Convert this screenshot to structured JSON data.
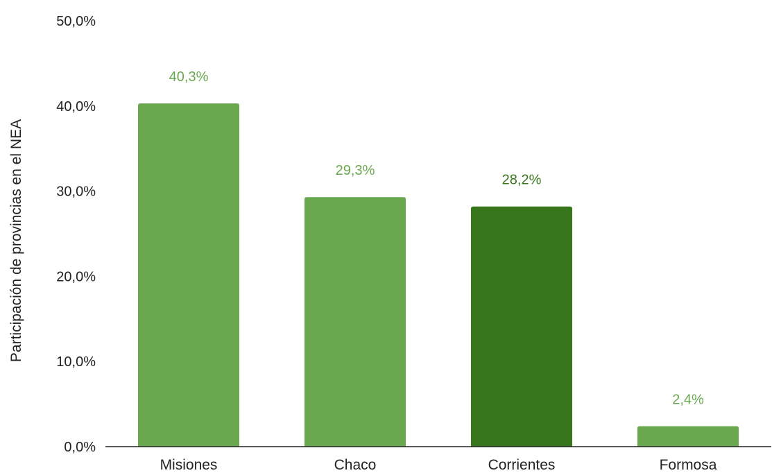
{
  "chart_data": {
    "type": "bar",
    "categories": [
      "Misiones",
      "Chaco",
      "Corrientes",
      "Formosa"
    ],
    "values": [
      40.3,
      29.3,
      28.2,
      2.4
    ],
    "data_labels": [
      "40,3%",
      "29,3%",
      "28,2%",
      "2,4%"
    ],
    "ylabel": "Participación de provincias en el NEA",
    "xlabel": "",
    "ylim": [
      0,
      50
    ],
    "yticks": [
      0,
      10,
      20,
      30,
      40,
      50
    ],
    "ytick_labels": [
      "0,0%",
      "10,0%",
      "20,0%",
      "30,0%",
      "40,0%",
      "50,0%"
    ],
    "grid": false,
    "legend": "none",
    "colors": {
      "default_bar": "#6aa84f",
      "highlight_bar": "#38761d",
      "default_label": "#6aa84f",
      "highlight_label": "#38761d",
      "axis": "#222222"
    },
    "highlight_index": 2
  }
}
